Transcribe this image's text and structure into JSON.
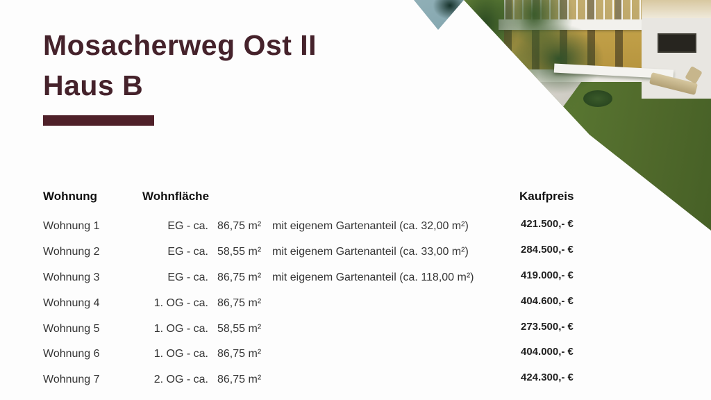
{
  "page": {
    "bg_color": "#fdfdfd"
  },
  "header": {
    "title_line1": "Mosacherweg Ost II",
    "title_line2": "Haus B",
    "accent_color": "#4f2029"
  },
  "table": {
    "headers": {
      "wohnung": "Wohnung",
      "wohnflaeche": "Wohnfläche",
      "kaufpreis": "Kaufpreis"
    },
    "rows": [
      {
        "wohnung": "Wohnung 1",
        "floor": "EG - ca.",
        "size": "86,75 m²",
        "garden": "mit eigenem Gartenanteil (ca. 32,00 m²)",
        "price": "421.500,- €"
      },
      {
        "wohnung": "Wohnung 2",
        "floor": "EG - ca.",
        "size": "58,55 m²",
        "garden": "mit eigenem Gartenanteil (ca. 33,00 m²)",
        "price": "284.500,- €"
      },
      {
        "wohnung": "Wohnung 3",
        "floor": "EG - ca.",
        "size": "86,75 m²",
        "garden": "mit eigenem Gartenanteil (ca. 118,00 m²)",
        "price": "419.000,- €"
      },
      {
        "wohnung": "Wohnung 4",
        "floor": "1. OG - ca.",
        "size": "86,75 m²",
        "garden": "",
        "price": "404.600,- €"
      },
      {
        "wohnung": "Wohnung 5",
        "floor": "1. OG - ca.",
        "size": "58,55 m²",
        "garden": "",
        "price": "273.500,- €"
      },
      {
        "wohnung": "Wohnung 6",
        "floor": "1. OG - ca.",
        "size": "86,75 m²",
        "garden": "",
        "price": "404.000,- €"
      },
      {
        "wohnung": "Wohnung 7",
        "floor": "2. OG - ca.",
        "size": "86,75 m²",
        "garden": "",
        "price": "424.300,- €"
      }
    ]
  },
  "photo": {
    "label": "building-exterior-rendering",
    "colors": {
      "lawn": "#5b7a33",
      "trees": "#33522a",
      "facade": "#caa94f",
      "teal_corner": "#6f99a4"
    }
  }
}
